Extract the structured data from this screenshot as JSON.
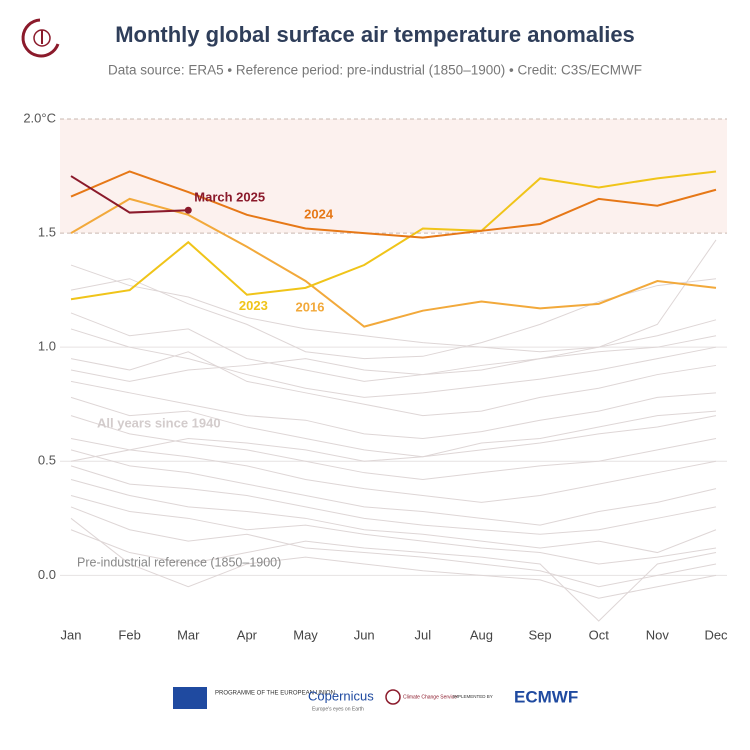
{
  "chart_data": {
    "type": "line",
    "title": "Monthly global surface air temperature anomalies",
    "subtitle": "Data source: ERA5 • Reference period: pre-industrial (1850–1900) • Credit: C3S/ECMWF",
    "categories": [
      "Jan",
      "Feb",
      "Mar",
      "Apr",
      "May",
      "Jun",
      "Jul",
      "Aug",
      "Sep",
      "Oct",
      "Nov",
      "Dec"
    ],
    "ylim": [
      -0.2,
      2.0
    ],
    "yticks": [
      {
        "value": 2.0,
        "label": "2.0°C"
      },
      1.5,
      {
        "value": 1.0,
        "label": "1.0"
      },
      0.5,
      {
        "value": 0.0,
        "label": "0.0"
      }
    ],
    "band": [
      1.5,
      2.0
    ],
    "grid": true,
    "annotations": [
      "All years since 1940",
      "Pre-industrial reference (1850–1900)"
    ],
    "series": [
      {
        "color": "#ded6d6",
        "values": [
          1.36,
          1.27,
          1.22,
          1.13,
          1.08,
          1.05,
          1.02,
          1.0,
          0.98,
          1.0,
          1.05,
          1.12
        ]
      },
      {
        "color": "#ded6d6",
        "values": [
          1.25,
          1.3,
          1.19,
          1.1,
          0.98,
          0.95,
          0.96,
          1.02,
          1.1,
          1.2,
          1.27,
          1.3
        ]
      },
      {
        "color": "#ded6d6",
        "values": [
          1.15,
          1.05,
          1.08,
          0.95,
          0.9,
          0.85,
          0.88,
          0.92,
          0.95,
          1.0,
          1.1,
          1.47
        ]
      },
      {
        "color": "#ded6d6",
        "values": [
          1.08,
          1.0,
          0.95,
          0.88,
          0.82,
          0.78,
          0.8,
          0.83,
          0.86,
          0.9,
          0.95,
          1.0
        ]
      },
      {
        "color": "#ded6d6",
        "values": [
          0.95,
          0.9,
          0.98,
          0.85,
          0.8,
          0.75,
          0.7,
          0.72,
          0.78,
          0.82,
          0.88,
          0.92
        ]
      },
      {
        "color": "#ded6d6",
        "values": [
          0.85,
          0.8,
          0.75,
          0.7,
          0.68,
          0.62,
          0.6,
          0.63,
          0.68,
          0.72,
          0.78,
          0.8
        ]
      },
      {
        "color": "#ded6d6",
        "values": [
          0.78,
          0.7,
          0.72,
          0.65,
          0.6,
          0.55,
          0.52,
          0.55,
          0.58,
          0.62,
          0.65,
          0.7
        ]
      },
      {
        "color": "#ded6d6",
        "values": [
          0.7,
          0.62,
          0.58,
          0.55,
          0.5,
          0.45,
          0.42,
          0.45,
          0.48,
          0.5,
          0.55,
          0.6
        ]
      },
      {
        "color": "#ded6d6",
        "values": [
          0.6,
          0.55,
          0.52,
          0.48,
          0.42,
          0.38,
          0.35,
          0.32,
          0.35,
          0.4,
          0.45,
          0.5
        ]
      },
      {
        "color": "#ded6d6",
        "values": [
          0.55,
          0.48,
          0.45,
          0.4,
          0.35,
          0.3,
          0.28,
          0.25,
          0.22,
          0.28,
          0.32,
          0.38
        ]
      },
      {
        "color": "#ded6d6",
        "values": [
          0.48,
          0.4,
          0.38,
          0.35,
          0.3,
          0.25,
          0.22,
          0.2,
          0.18,
          0.2,
          0.25,
          0.3
        ]
      },
      {
        "color": "#ded6d6",
        "values": [
          0.42,
          0.35,
          0.3,
          0.28,
          0.25,
          0.2,
          0.18,
          0.15,
          0.12,
          0.15,
          0.1,
          0.2
        ]
      },
      {
        "color": "#ded6d6",
        "values": [
          0.35,
          0.28,
          0.25,
          0.2,
          0.22,
          0.18,
          0.15,
          0.12,
          0.1,
          0.05,
          0.08,
          0.12
        ]
      },
      {
        "color": "#ded6d6",
        "values": [
          0.3,
          0.2,
          0.15,
          0.18,
          0.12,
          0.1,
          0.08,
          0.05,
          0.02,
          -0.05,
          0.0,
          0.05
        ]
      },
      {
        "color": "#ded6d6",
        "values": [
          0.25,
          0.05,
          -0.05,
          0.05,
          0.08,
          0.05,
          0.02,
          0.0,
          -0.02,
          -0.1,
          -0.05,
          0.0
        ]
      },
      {
        "color": "#ded6d6",
        "values": [
          0.2,
          0.1,
          0.05,
          0.1,
          0.15,
          0.12,
          0.1,
          0.08,
          0.05,
          -0.2,
          0.05,
          0.1
        ]
      },
      {
        "color": "#ded6d6",
        "values": [
          0.9,
          0.85,
          0.9,
          0.92,
          0.95,
          0.9,
          0.88,
          0.9,
          0.95,
          0.98,
          1.0,
          1.05
        ]
      },
      {
        "color": "#ded6d6",
        "values": [
          0.5,
          0.55,
          0.6,
          0.58,
          0.55,
          0.5,
          0.52,
          0.58,
          0.6,
          0.65,
          0.7,
          0.72
        ]
      },
      {
        "name": "2016",
        "color": "#f2a93b",
        "label_at": 4,
        "values": [
          1.5,
          1.65,
          1.58,
          1.44,
          1.29,
          1.09,
          1.16,
          1.2,
          1.17,
          1.19,
          1.29,
          1.26
        ]
      },
      {
        "name": "2023",
        "color": "#f0c419",
        "label_at": 3,
        "values": [
          1.21,
          1.25,
          1.46,
          1.23,
          1.26,
          1.36,
          1.52,
          1.51,
          1.74,
          1.7,
          1.74,
          1.77
        ]
      },
      {
        "name": "2024",
        "color": "#e67817",
        "label_at": 5,
        "values": [
          1.66,
          1.77,
          1.68,
          1.58,
          1.52,
          1.5,
          1.48,
          1.51,
          1.54,
          1.65,
          1.62,
          1.69
        ]
      },
      {
        "name": "March 2025",
        "color": "#8b1a2b",
        "label_at": 2,
        "end_marker": true,
        "values": [
          1.75,
          1.59,
          1.6,
          null,
          null,
          null,
          null,
          null,
          null,
          null,
          null,
          null
        ]
      }
    ]
  },
  "footer": {
    "eu": "PROGRAMME OF THE EUROPEAN UNION",
    "copernicus": "Copernicus",
    "copernicus_sub": "Europe's eyes on Earth",
    "c3s": "Climate Change Service",
    "implemented": "IMPLEMENTED BY",
    "ecmwf": "ECMWF"
  }
}
